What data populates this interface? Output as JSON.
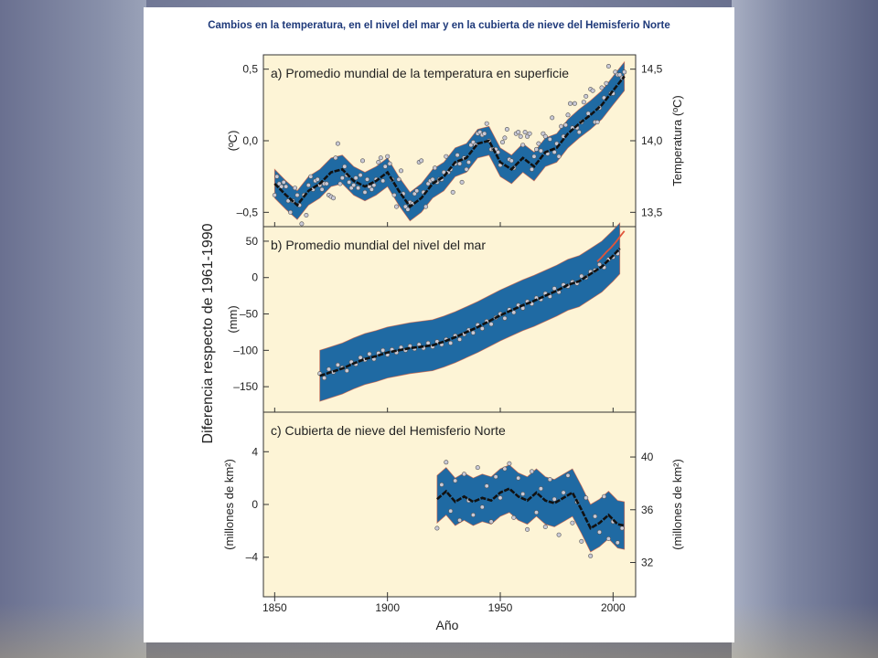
{
  "figure": {
    "title": "Cambios en la temperatura, en el nivel del mar y en la cubierta de nieve del Hemisferio Norte",
    "left_axis_title": "Diferencia respecto de 1961-1990",
    "xlabel": "Año"
  },
  "colors": {
    "panel_bg": "#fdf4d6",
    "band": "#1f6aa3",
    "band_edge": "#d0573a",
    "smooth_line": "#111111",
    "points_fill": "#c9c9d6",
    "points_stroke": "#555555",
    "title": "#1f3a7a",
    "sea_level_satellite": "#e0553a"
  },
  "chart_data": [
    {
      "type": "line",
      "panel_label": "a) Promedio mundial de la temperatura en superficie",
      "ylabel": "(ºC)",
      "ylabel_right": "Temperatura (ºC)",
      "xlim": [
        1845,
        2010
      ],
      "ylim": [
        -0.6,
        0.6
      ],
      "yticks": [
        -0.5,
        0.0,
        0.5
      ],
      "yticklabels": [
        "–0,5",
        "0,0",
        "0,5"
      ],
      "yticks_right": [
        13.5,
        14.0,
        14.5
      ],
      "yticklabels_right": [
        "13,5",
        "14,0",
        "14,5"
      ],
      "right_offset": 14.0,
      "band_halfwidth": 0.1,
      "smooth": {
        "x": [
          1850,
          1855,
          1860,
          1865,
          1870,
          1875,
          1880,
          1885,
          1890,
          1895,
          1900,
          1905,
          1910,
          1915,
          1920,
          1925,
          1930,
          1935,
          1940,
          1945,
          1950,
          1955,
          1960,
          1965,
          1970,
          1975,
          1980,
          1985,
          1990,
          1995,
          2000,
          2005
        ],
        "y": [
          -0.3,
          -0.38,
          -0.45,
          -0.35,
          -0.3,
          -0.22,
          -0.2,
          -0.28,
          -0.32,
          -0.28,
          -0.22,
          -0.35,
          -0.46,
          -0.4,
          -0.3,
          -0.25,
          -0.15,
          -0.12,
          -0.02,
          0.0,
          -0.15,
          -0.2,
          -0.12,
          -0.18,
          -0.08,
          -0.05,
          0.05,
          0.12,
          0.18,
          0.25,
          0.35,
          0.45
        ]
      },
      "points": {
        "x": [
          1850,
          1851,
          1852,
          1853,
          1854,
          1855,
          1856,
          1857,
          1858,
          1859,
          1860,
          1861,
          1862,
          1863,
          1864,
          1865,
          1866,
          1867,
          1868,
          1869,
          1870,
          1871,
          1872,
          1873,
          1874,
          1875,
          1876,
          1877,
          1878,
          1879,
          1880,
          1881,
          1882,
          1883,
          1884,
          1885,
          1886,
          1887,
          1888,
          1889,
          1890,
          1891,
          1892,
          1893,
          1894,
          1895,
          1896,
          1897,
          1898,
          1899,
          1900,
          1901,
          1902,
          1903,
          1904,
          1905,
          1906,
          1907,
          1908,
          1909,
          1910,
          1911,
          1912,
          1913,
          1914,
          1915,
          1916,
          1917,
          1918,
          1919,
          1920,
          1921,
          1922,
          1923,
          1924,
          1925,
          1926,
          1927,
          1928,
          1929,
          1930,
          1931,
          1932,
          1933,
          1934,
          1935,
          1936,
          1937,
          1938,
          1939,
          1940,
          1941,
          1942,
          1943,
          1944,
          1945,
          1946,
          1947,
          1948,
          1949,
          1950,
          1951,
          1952,
          1953,
          1954,
          1955,
          1956,
          1957,
          1958,
          1959,
          1960,
          1961,
          1962,
          1963,
          1964,
          1965,
          1966,
          1967,
          1968,
          1969,
          1970,
          1971,
          1972,
          1973,
          1974,
          1975,
          1976,
          1977,
          1978,
          1979,
          1980,
          1981,
          1982,
          1983,
          1984,
          1985,
          1986,
          1987,
          1988,
          1989,
          1990,
          1991,
          1992,
          1993,
          1994,
          1995,
          1996,
          1997,
          1998,
          1999,
          2000,
          2001,
          2002,
          2003,
          2004,
          2005
        ],
        "y": [
          -0.38,
          -0.25,
          -0.3,
          -0.32,
          -0.29,
          -0.32,
          -0.42,
          -0.5,
          -0.42,
          -0.33,
          -0.38,
          -0.45,
          -0.58,
          -0.38,
          -0.52,
          -0.31,
          -0.25,
          -0.34,
          -0.28,
          -0.27,
          -0.31,
          -0.34,
          -0.3,
          -0.3,
          -0.38,
          -0.39,
          -0.4,
          -0.12,
          -0.02,
          -0.3,
          -0.26,
          -0.18,
          -0.24,
          -0.29,
          -0.33,
          -0.31,
          -0.26,
          -0.33,
          -0.24,
          -0.14,
          -0.36,
          -0.27,
          -0.32,
          -0.34,
          -0.31,
          -0.27,
          -0.15,
          -0.12,
          -0.28,
          -0.18,
          -0.11,
          -0.16,
          -0.27,
          -0.38,
          -0.46,
          -0.27,
          -0.21,
          -0.37,
          -0.46,
          -0.48,
          -0.43,
          -0.44,
          -0.37,
          -0.35,
          -0.15,
          -0.14,
          -0.36,
          -0.46,
          -0.3,
          -0.28,
          -0.27,
          -0.19,
          -0.29,
          -0.27,
          -0.27,
          -0.22,
          -0.11,
          -0.22,
          -0.2,
          -0.36,
          -0.16,
          -0.1,
          -0.16,
          -0.29,
          -0.12,
          -0.2,
          -0.15,
          -0.03,
          -0.01,
          -0.03,
          0.05,
          0.06,
          0.04,
          0.05,
          0.12,
          0.0,
          -0.06,
          -0.06,
          -0.06,
          -0.08,
          -0.17,
          -0.01,
          0.02,
          0.08,
          -0.13,
          -0.14,
          -0.19,
          0.05,
          0.06,
          0.03,
          -0.03,
          0.06,
          0.03,
          0.05,
          -0.2,
          -0.11,
          -0.06,
          -0.02,
          -0.07,
          0.05,
          0.03,
          -0.09,
          0.01,
          0.16,
          -0.08,
          -0.02,
          -0.11,
          0.1,
          0.03,
          0.11,
          0.18,
          0.26,
          0.09,
          0.26,
          0.09,
          0.06,
          0.13,
          0.27,
          0.31,
          0.19,
          0.36,
          0.35,
          0.13,
          0.13,
          0.23,
          0.37,
          0.3,
          0.4,
          0.52,
          0.33,
          0.33,
          0.48,
          0.46,
          0.46,
          0.44,
          0.48
        ]
      }
    },
    {
      "type": "line",
      "panel_label": "b) Promedio mundial del nivel del mar",
      "ylabel": "(mm)",
      "xlim": [
        1845,
        2010
      ],
      "ylim": [
        -185,
        70
      ],
      "yticks": [
        -150,
        -100,
        -50,
        0,
        50
      ],
      "yticklabels": [
        "–150",
        "–100",
        "–50",
        "0",
        "50"
      ],
      "band_halfwidth": 35,
      "smooth": {
        "x": [
          1870,
          1875,
          1880,
          1885,
          1890,
          1895,
          1900,
          1905,
          1910,
          1915,
          1920,
          1925,
          1930,
          1935,
          1940,
          1945,
          1950,
          1955,
          1960,
          1965,
          1970,
          1975,
          1980,
          1985,
          1990,
          1995,
          2000,
          2003
        ],
        "y": [
          -135,
          -130,
          -125,
          -118,
          -112,
          -108,
          -103,
          -100,
          -97,
          -95,
          -93,
          -88,
          -82,
          -75,
          -68,
          -60,
          -52,
          -45,
          -38,
          -32,
          -25,
          -18,
          -10,
          -5,
          5,
          15,
          30,
          40
        ]
      },
      "points": {
        "x": [
          1870,
          1872,
          1874,
          1876,
          1878,
          1880,
          1882,
          1884,
          1886,
          1888,
          1890,
          1892,
          1894,
          1896,
          1898,
          1900,
          1902,
          1904,
          1906,
          1908,
          1910,
          1912,
          1914,
          1916,
          1918,
          1920,
          1922,
          1924,
          1926,
          1928,
          1930,
          1932,
          1934,
          1936,
          1938,
          1940,
          1942,
          1944,
          1946,
          1948,
          1950,
          1952,
          1954,
          1956,
          1958,
          1960,
          1962,
          1964,
          1966,
          1968,
          1970,
          1972,
          1974,
          1976,
          1978,
          1980,
          1982,
          1984,
          1986,
          1988,
          1990,
          1992,
          1994,
          1996,
          1998,
          2000,
          2002
        ],
        "y": [
          -132,
          -138,
          -126,
          -130,
          -120,
          -124,
          -128,
          -116,
          -119,
          -110,
          -113,
          -105,
          -112,
          -104,
          -100,
          -106,
          -99,
          -103,
          -96,
          -100,
          -94,
          -98,
          -92,
          -97,
          -90,
          -95,
          -88,
          -92,
          -85,
          -90,
          -80,
          -85,
          -78,
          -72,
          -76,
          -65,
          -70,
          -60,
          -64,
          -55,
          -50,
          -56,
          -44,
          -48,
          -38,
          -42,
          -33,
          -36,
          -28,
          -30,
          -22,
          -26,
          -15,
          -20,
          -10,
          -12,
          -6,
          -8,
          2,
          0,
          8,
          10,
          18,
          14,
          25,
          28,
          33
        ]
      },
      "satellite": {
        "name": "satellite",
        "x": [
          1993,
          1995,
          1997,
          1999,
          2001,
          2003,
          2005
        ],
        "y": [
          22,
          28,
          35,
          41,
          48,
          56,
          64
        ]
      }
    },
    {
      "type": "line",
      "panel_label": "c) Cubierta de nieve del Hemisferio Norte",
      "ylabel": "(millones de km²)",
      "ylabel_right": "(millones de km²)",
      "xlim": [
        1845,
        2010
      ],
      "ylim": [
        -7,
        7
      ],
      "yticks": [
        -4,
        0,
        4
      ],
      "yticklabels": [
        "–4",
        "0",
        "4"
      ],
      "yticks_right": [
        32,
        36,
        40
      ],
      "yticklabels_right": [
        "32",
        "36",
        "40"
      ],
      "right_offset": 36.4,
      "band_halfwidth": 1.8,
      "smooth": {
        "x": [
          1922,
          1926,
          1930,
          1934,
          1938,
          1942,
          1946,
          1950,
          1954,
          1958,
          1962,
          1966,
          1970,
          1974,
          1978,
          1982,
          1986,
          1990,
          1994,
          1998,
          2002,
          2005
        ],
        "y": [
          0.4,
          1.0,
          0.2,
          0.6,
          0.2,
          0.5,
          0.3,
          0.9,
          1.2,
          0.6,
          0.3,
          0.9,
          0.3,
          0.1,
          0.5,
          0.9,
          -0.4,
          -1.8,
          -1.4,
          -0.8,
          -1.5,
          -1.6
        ]
      },
      "points": {
        "x": [
          1922,
          1924,
          1926,
          1928,
          1930,
          1932,
          1934,
          1936,
          1938,
          1940,
          1942,
          1944,
          1946,
          1948,
          1950,
          1952,
          1954,
          1956,
          1958,
          1960,
          1962,
          1964,
          1966,
          1968,
          1970,
          1972,
          1974,
          1976,
          1978,
          1980,
          1982,
          1984,
          1986,
          1988,
          1990,
          1992,
          1994,
          1996,
          1998,
          2000,
          2002,
          2004
        ],
        "y": [
          -1.8,
          1.5,
          3.2,
          -0.5,
          1.8,
          -1.2,
          2.3,
          0.3,
          -0.8,
          2.8,
          -0.2,
          1.4,
          -1.3,
          2.1,
          0.5,
          2.7,
          3.1,
          -1.0,
          2.0,
          0.8,
          -1.9,
          2.5,
          -0.6,
          1.2,
          -1.7,
          1.9,
          0.4,
          -2.3,
          0.9,
          2.2,
          -1.4,
          0.2,
          -2.8,
          0.5,
          -3.9,
          -0.9,
          -2.1,
          0.6,
          -2.6,
          -1.3,
          -2.9,
          -1.8
        ]
      }
    }
  ],
  "x_axis": {
    "ticks": [
      1850,
      1900,
      1950,
      2000
    ],
    "ticklabels": [
      "1850",
      "1900",
      "1950",
      "2000"
    ]
  }
}
